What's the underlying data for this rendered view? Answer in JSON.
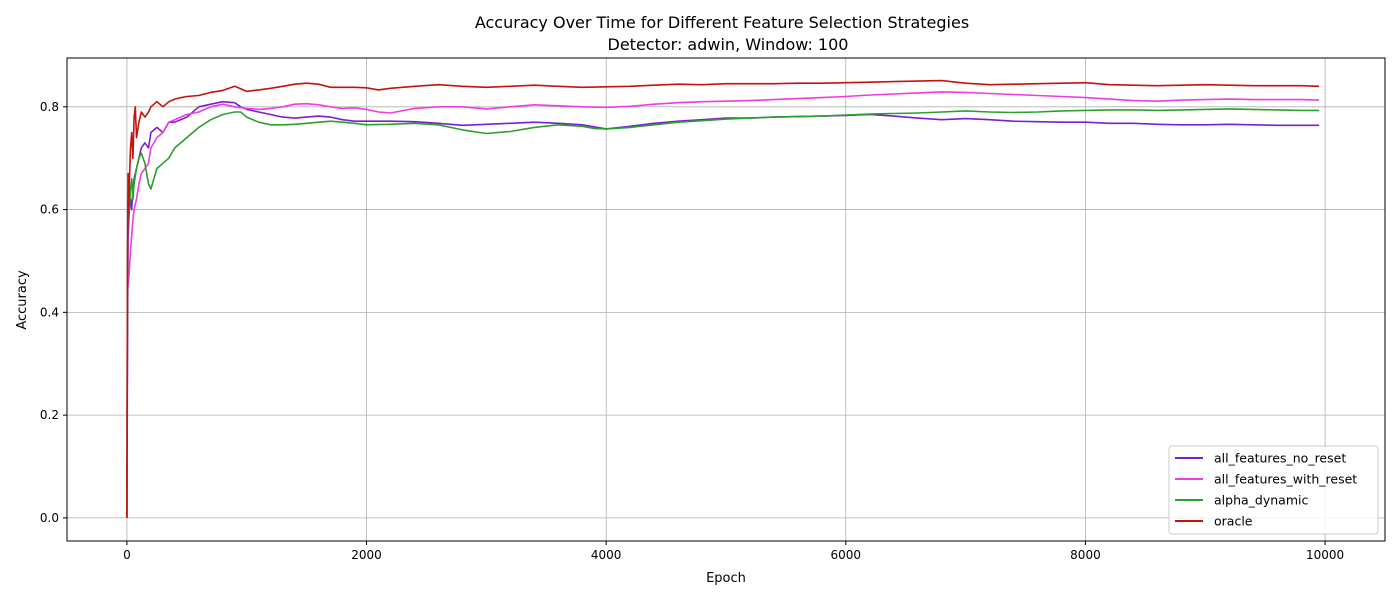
{
  "chart_data": {
    "type": "line",
    "title": "Accuracy Over Time for Different Feature Selection Strategies",
    "subtitle": "Detector: adwin, Window: 100",
    "xlabel": "Epoch",
    "ylabel": "Accuracy",
    "xlim": [
      -500,
      10500
    ],
    "ylim": [
      -0.045,
      0.895
    ],
    "xticks": [
      0,
      2000,
      4000,
      6000,
      8000,
      10000
    ],
    "xtick_labels": [
      "0",
      "2000",
      "4000",
      "6000",
      "8000",
      "10000"
    ],
    "yticks": [
      0.0,
      0.2,
      0.4,
      0.6,
      0.8
    ],
    "ytick_labels": [
      "0.0",
      "0.2",
      "0.4",
      "0.6",
      "0.8"
    ],
    "grid": true,
    "legend_position": "lower-right",
    "series": [
      {
        "name": "all_features_no_reset",
        "color": "#7b1fd6",
        "x": [
          0,
          5,
          10,
          20,
          30,
          40,
          50,
          60,
          80,
          100,
          120,
          150,
          180,
          200,
          250,
          300,
          350,
          400,
          500,
          600,
          700,
          800,
          900,
          950,
          1000,
          1100,
          1200,
          1300,
          1400,
          1500,
          1600,
          1700,
          1800,
          1900,
          2000,
          2200,
          2400,
          2600,
          2800,
          3000,
          3200,
          3400,
          3600,
          3800,
          4000,
          4200,
          4400,
          4600,
          4800,
          5000,
          5200,
          5400,
          5600,
          5800,
          6000,
          6200,
          6400,
          6600,
          6800,
          7000,
          7200,
          7400,
          7600,
          7800,
          8000,
          8200,
          8400,
          8600,
          8800,
          9000,
          9200,
          9400,
          9600,
          9800,
          9950
        ],
        "y": [
          0.0,
          0.33,
          0.55,
          0.6,
          0.62,
          0.6,
          0.64,
          0.66,
          0.68,
          0.7,
          0.72,
          0.73,
          0.72,
          0.75,
          0.76,
          0.75,
          0.77,
          0.77,
          0.78,
          0.8,
          0.805,
          0.81,
          0.808,
          0.8,
          0.795,
          0.79,
          0.785,
          0.78,
          0.778,
          0.78,
          0.782,
          0.78,
          0.775,
          0.772,
          0.772,
          0.772,
          0.771,
          0.768,
          0.764,
          0.766,
          0.768,
          0.77,
          0.768,
          0.765,
          0.757,
          0.762,
          0.768,
          0.772,
          0.775,
          0.778,
          0.778,
          0.78,
          0.781,
          0.782,
          0.783,
          0.785,
          0.782,
          0.778,
          0.775,
          0.777,
          0.775,
          0.772,
          0.771,
          0.77,
          0.77,
          0.768,
          0.768,
          0.766,
          0.765,
          0.765,
          0.766,
          0.765,
          0.764,
          0.764,
          0.764
        ]
      },
      {
        "name": "all_features_with_reset",
        "color": "#f03ce0",
        "x": [
          0,
          5,
          10,
          20,
          30,
          40,
          50,
          60,
          80,
          100,
          120,
          150,
          180,
          200,
          250,
          300,
          350,
          400,
          500,
          600,
          700,
          800,
          900,
          1000,
          1100,
          1200,
          1300,
          1400,
          1500,
          1600,
          1700,
          1800,
          1900,
          2000,
          2100,
          2200,
          2400,
          2600,
          2800,
          3000,
          3200,
          3400,
          3600,
          3800,
          4000,
          4200,
          4400,
          4600,
          4800,
          5000,
          5200,
          5400,
          5600,
          5800,
          6000,
          6200,
          6400,
          6600,
          6800,
          7000,
          7200,
          7400,
          7600,
          7800,
          8000,
          8200,
          8400,
          8600,
          8800,
          9000,
          9200,
          9400,
          9600,
          9800,
          9950
        ],
        "y": [
          0.0,
          0.5,
          0.45,
          0.48,
          0.52,
          0.55,
          0.58,
          0.6,
          0.62,
          0.65,
          0.67,
          0.68,
          0.69,
          0.72,
          0.74,
          0.75,
          0.77,
          0.775,
          0.785,
          0.79,
          0.8,
          0.805,
          0.8,
          0.797,
          0.795,
          0.797,
          0.8,
          0.805,
          0.806,
          0.804,
          0.8,
          0.797,
          0.798,
          0.795,
          0.79,
          0.788,
          0.797,
          0.8,
          0.8,
          0.796,
          0.8,
          0.804,
          0.802,
          0.8,
          0.799,
          0.801,
          0.805,
          0.808,
          0.81,
          0.811,
          0.812,
          0.814,
          0.816,
          0.818,
          0.82,
          0.823,
          0.825,
          0.827,
          0.829,
          0.828,
          0.826,
          0.824,
          0.822,
          0.82,
          0.818,
          0.815,
          0.812,
          0.811,
          0.813,
          0.814,
          0.815,
          0.814,
          0.814,
          0.814,
          0.813
        ]
      },
      {
        "name": "alpha_dynamic",
        "color": "#2ca02c",
        "x": [
          0,
          5,
          10,
          20,
          30,
          40,
          50,
          60,
          80,
          100,
          120,
          150,
          180,
          200,
          250,
          300,
          350,
          400,
          500,
          600,
          700,
          800,
          900,
          950,
          1000,
          1100,
          1200,
          1300,
          1400,
          1500,
          1600,
          1700,
          1800,
          1900,
          2000,
          2200,
          2400,
          2600,
          2800,
          3000,
          3200,
          3400,
          3600,
          3800,
          3900,
          4000,
          4200,
          4400,
          4600,
          4800,
          5000,
          5200,
          5400,
          5600,
          5800,
          6000,
          6200,
          6400,
          6600,
          6800,
          7000,
          7200,
          7400,
          7600,
          7800,
          8000,
          8200,
          8400,
          8600,
          8800,
          9000,
          9200,
          9400,
          9600,
          9800,
          9950
        ],
        "y": [
          0.0,
          0.5,
          0.62,
          0.6,
          0.64,
          0.66,
          0.62,
          0.65,
          0.68,
          0.7,
          0.71,
          0.69,
          0.65,
          0.64,
          0.68,
          0.69,
          0.7,
          0.72,
          0.74,
          0.76,
          0.775,
          0.785,
          0.79,
          0.79,
          0.78,
          0.77,
          0.765,
          0.765,
          0.766,
          0.768,
          0.77,
          0.772,
          0.77,
          0.768,
          0.765,
          0.766,
          0.768,
          0.765,
          0.755,
          0.748,
          0.752,
          0.76,
          0.765,
          0.762,
          0.758,
          0.757,
          0.76,
          0.765,
          0.77,
          0.773,
          0.776,
          0.778,
          0.78,
          0.781,
          0.782,
          0.784,
          0.786,
          0.787,
          0.788,
          0.79,
          0.792,
          0.79,
          0.789,
          0.79,
          0.792,
          0.793,
          0.794,
          0.794,
          0.793,
          0.794,
          0.795,
          0.796,
          0.795,
          0.794,
          0.793,
          0.793
        ]
      },
      {
        "name": "oracle",
        "color": "#c4130f",
        "x": [
          0,
          5,
          10,
          15,
          20,
          30,
          40,
          50,
          60,
          70,
          80,
          100,
          120,
          150,
          180,
          200,
          250,
          300,
          350,
          400,
          450,
          500,
          600,
          700,
          800,
          900,
          950,
          1000,
          1100,
          1200,
          1300,
          1400,
          1500,
          1600,
          1700,
          1800,
          1900,
          2000,
          2100,
          2200,
          2400,
          2600,
          2800,
          3000,
          3200,
          3400,
          3600,
          3800,
          4000,
          4200,
          4400,
          4600,
          4800,
          5000,
          5200,
          5400,
          5600,
          5800,
          6000,
          6200,
          6400,
          6600,
          6800,
          7000,
          7200,
          7400,
          7600,
          7800,
          8000,
          8200,
          8400,
          8600,
          8800,
          9000,
          9200,
          9400,
          9600,
          9800,
          9950
        ],
        "y": [
          0.0,
          0.5,
          0.67,
          0.6,
          0.65,
          0.72,
          0.75,
          0.7,
          0.78,
          0.8,
          0.74,
          0.77,
          0.79,
          0.78,
          0.79,
          0.8,
          0.81,
          0.8,
          0.81,
          0.815,
          0.818,
          0.82,
          0.822,
          0.828,
          0.832,
          0.84,
          0.835,
          0.83,
          0.833,
          0.836,
          0.84,
          0.844,
          0.846,
          0.844,
          0.838,
          0.838,
          0.838,
          0.837,
          0.833,
          0.836,
          0.84,
          0.843,
          0.84,
          0.838,
          0.84,
          0.842,
          0.84,
          0.838,
          0.839,
          0.84,
          0.842,
          0.844,
          0.843,
          0.845,
          0.845,
          0.845,
          0.846,
          0.846,
          0.847,
          0.848,
          0.849,
          0.85,
          0.851,
          0.846,
          0.843,
          0.844,
          0.845,
          0.846,
          0.847,
          0.843,
          0.842,
          0.841,
          0.842,
          0.843,
          0.842,
          0.841,
          0.841,
          0.841,
          0.84
        ]
      }
    ]
  }
}
